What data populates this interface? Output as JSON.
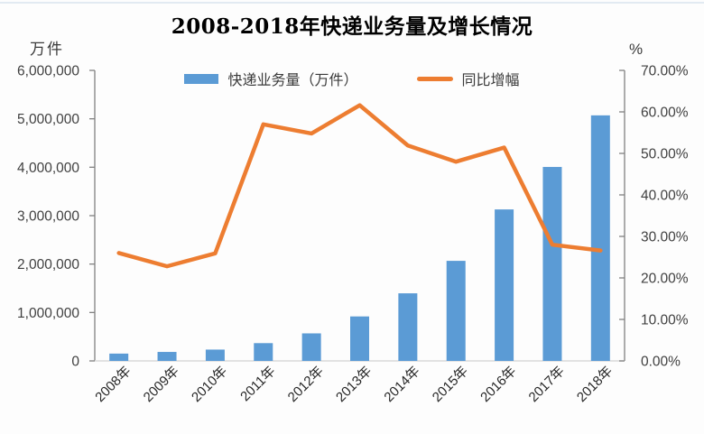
{
  "chart_data": {
    "type": "combo",
    "title": "2008-2018年快递业务量及增长情况",
    "categories": [
      "2008年",
      "2009年",
      "2010年",
      "2011年",
      "2012年",
      "2013年",
      "2014年",
      "2015年",
      "2016年",
      "2017年",
      "2018年"
    ],
    "series": [
      {
        "name": "快递业务量（万件）",
        "type": "bar",
        "axis": "left",
        "color": "#5B9BD5",
        "values": [
          151300,
          185800,
          233900,
          367300,
          568500,
          918700,
          1396000,
          2066600,
          3128300,
          4005600,
          5071000
        ]
      },
      {
        "name": "同比增幅",
        "type": "line",
        "axis": "right",
        "color": "#ED7D31",
        "values": [
          26.0,
          22.8,
          25.9,
          57.0,
          54.8,
          61.6,
          51.9,
          48.0,
          51.4,
          28.0,
          26.6
        ]
      }
    ],
    "left_axis": {
      "unit": "万件",
      "min": 0,
      "max": 6000000,
      "step": 1000000,
      "tick_labels": [
        "0",
        "1,000,000",
        "2,000,000",
        "3,000,000",
        "4,000,000",
        "5,000,000",
        "6,000,000"
      ]
    },
    "right_axis": {
      "unit": "%",
      "min": 0,
      "max": 70,
      "step": 10,
      "tick_labels": [
        "0.00%",
        "10.00%",
        "20.00%",
        "30.00%",
        "40.00%",
        "50.00%",
        "60.00%",
        "70.00%"
      ]
    },
    "grid": false,
    "legend_position": "top",
    "colors": {
      "axis_line": "#808080",
      "bottom_axis_line": "#d9d9d9",
      "tick_label": "#404040",
      "x_label": "#262626"
    }
  }
}
